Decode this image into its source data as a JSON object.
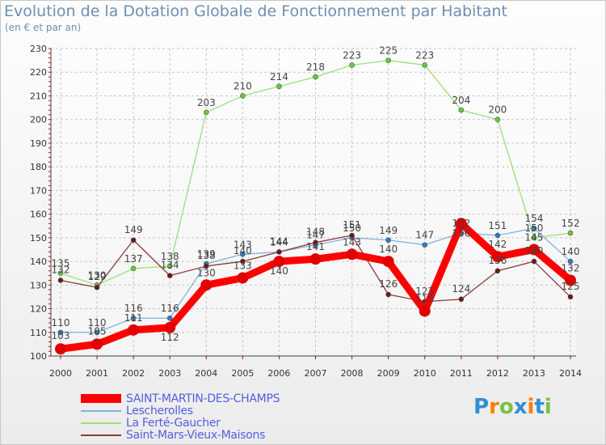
{
  "title": "Evolution de la Dotation Globale de Fonctionnement par Habitant",
  "subtitle": "(en € et par an)",
  "brand": {
    "text": "Proxiti"
  },
  "chart_data": {
    "type": "line",
    "title": "Evolution de la Dotation Globale de Fonctionnement par Habitant",
    "ylabel": "(en € et par an)",
    "xlabel": "",
    "grid": true,
    "ylim": [
      100,
      230
    ],
    "yticks": [
      100,
      110,
      120,
      130,
      140,
      150,
      160,
      170,
      180,
      190,
      200,
      210,
      220,
      230
    ],
    "categories": [
      "2000",
      "2001",
      "2002",
      "2003",
      "2004",
      "2005",
      "2006",
      "2007",
      "2008",
      "2009",
      "2010",
      "2011",
      "2012",
      "2013",
      "2014"
    ],
    "legend_position": "bottom-left",
    "series": [
      {
        "name": "SAINT-MARTIN-DES-CHAMPS",
        "color": "#ff0000",
        "marker_color": "#e00000",
        "emphasis": true,
        "values": [
          103,
          105,
          111,
          112,
          130,
          133,
          140,
          141,
          143,
          140,
          119,
          156,
          142,
          145,
          132
        ]
      },
      {
        "name": "Lescherolles",
        "color": "#7fb3df",
        "marker_color": "#2e7bc4",
        "values": [
          110,
          110,
          116,
          116,
          139,
          143,
          144,
          147,
          150,
          149,
          147,
          152,
          151,
          154,
          140
        ]
      },
      {
        "name": "La Ferté-Gaucher",
        "color": "#99e07a",
        "marker_color": "#66cc33",
        "values": [
          135,
          130,
          137,
          138,
          203,
          210,
          214,
          218,
          223,
          225,
          223,
          204,
          200,
          150,
          152
        ]
      },
      {
        "name": "Saint-Mars-Vieux-Maisons",
        "color": "#8b3a3a",
        "marker_color": "#6b1a1a",
        "values": [
          132,
          129,
          149,
          134,
          138,
          140,
          144,
          148,
          151,
          126,
          123,
          124,
          136,
          140,
          125
        ]
      }
    ]
  }
}
